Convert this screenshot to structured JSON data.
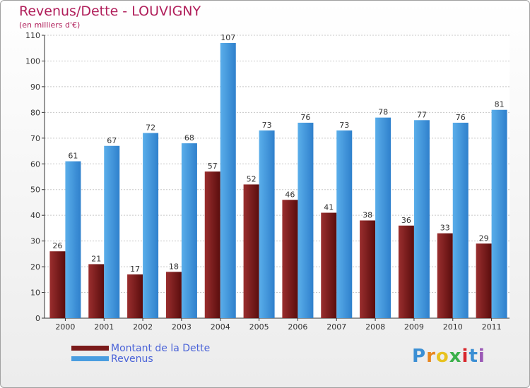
{
  "header": {
    "title": "Revenus/Dette - LOUVIGNY",
    "subtitle": "(en milliers d'€)"
  },
  "chart_data": {
    "type": "bar",
    "categories": [
      "2000",
      "2001",
      "2002",
      "2003",
      "2004",
      "2005",
      "2006",
      "2007",
      "2008",
      "2009",
      "2010",
      "2011"
    ],
    "series": [
      {
        "name": "Montant de la Dette",
        "values": [
          26,
          21,
          17,
          18,
          57,
          52,
          46,
          41,
          38,
          36,
          33,
          29
        ],
        "color": "#7a1a1a"
      },
      {
        "name": "Revenus",
        "values": [
          61,
          67,
          72,
          68,
          107,
          73,
          76,
          73,
          78,
          77,
          76,
          81
        ],
        "color": "#4a9de0"
      }
    ],
    "title": "Revenus/Dette - LOUVIGNY",
    "subtitle": "(en milliers d'€)",
    "ylim": [
      0,
      110
    ],
    "yticks": [
      0,
      10,
      20,
      30,
      40,
      50,
      60,
      70,
      80,
      90,
      100,
      110
    ],
    "grid": true,
    "legend_placement": "bottom-left"
  },
  "legend": {
    "items": [
      {
        "label": "Montant de la Dette",
        "color": "#7a1a1a"
      },
      {
        "label": "Revenus",
        "color": "#4a9de0"
      }
    ]
  },
  "logo": {
    "letters": [
      "P",
      "r",
      "o",
      "x",
      "i",
      "t",
      "i"
    ],
    "colors": [
      "#3b8fd4",
      "#e8861f",
      "#e8c21f",
      "#3bb04a",
      "#d8262c",
      "#3b8fd4",
      "#9b59b6"
    ]
  }
}
